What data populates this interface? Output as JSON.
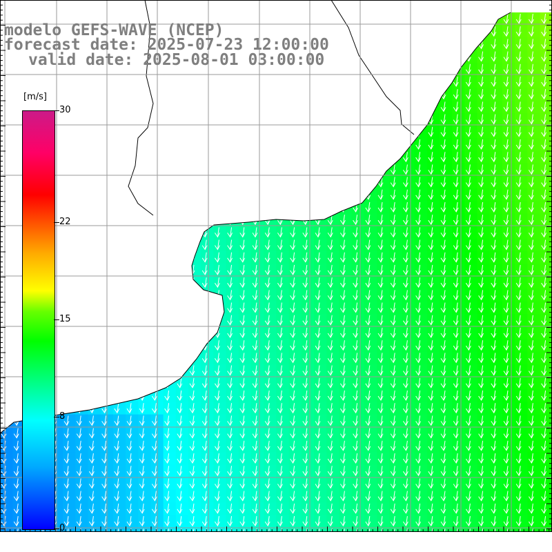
{
  "title": {
    "line1": "modelo GEFS-WAVE (NCEP)",
    "line2": "forecast date: 2025-07-23 12:00:00",
    "line3": "valid date: 2025-08-01 03:00:00"
  },
  "colorbar": {
    "unit": "[m/s]",
    "min": 0,
    "max": 30,
    "ticks": [
      {
        "value": 30,
        "label": "30"
      },
      {
        "value": 22,
        "label": "22"
      },
      {
        "value": 15,
        "label": "15"
      },
      {
        "value": 8,
        "label": "8"
      },
      {
        "value": 0,
        "label": "0"
      }
    ]
  },
  "map": {
    "quantity": "wind speed",
    "wind_direction": "from north (arrows pointing south-southwest)",
    "colors": {
      "land": "#ffffff",
      "coast": "#000000",
      "grid": "#9a9a9a",
      "arrows": "#ffffff"
    }
  }
}
